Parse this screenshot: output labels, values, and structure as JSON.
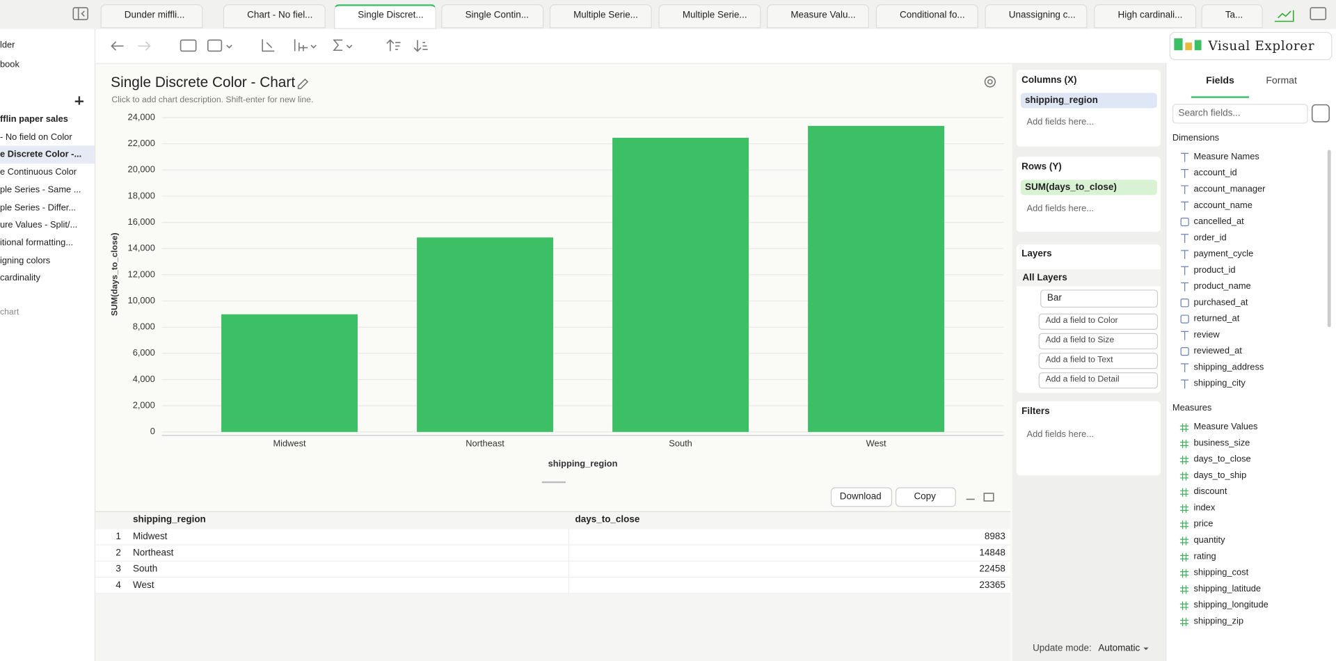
{
  "tabs": [
    "Dunder miffli...",
    "Chart - No fiel...",
    "Single Discret...",
    "Single Contin...",
    "Multiple Serie...",
    "Multiple Serie...",
    "Measure Valu...",
    "Conditional fo...",
    "Unassigning c...",
    "High cardinali...",
    "Ta..."
  ],
  "sidebar": {
    "items": [
      "lder",
      "book"
    ],
    "workbook_items": [
      "fflin paper sales",
      "- No field on Color",
      "e Discrete Color -...",
      "e Continuous Color",
      "ple Series - Same ...",
      "ple Series - Differ...",
      "ure Values - Split/...",
      "itional formatting...",
      "igning colors",
      "cardinality"
    ],
    "footer": "chart"
  },
  "app_title": "Visual Explorer",
  "chart_header": {
    "title": "Single Discrete Color - Chart",
    "description": "Click to add chart description. Shift-enter for new line."
  },
  "chart_data": {
    "type": "bar",
    "categories": [
      "Midwest",
      "Northeast",
      "South",
      "West"
    ],
    "values": [
      8983,
      14848,
      22458,
      23365
    ],
    "color": "#3dc065",
    "x_label": "shipping_region",
    "y_label": "SUM(days_to_close)",
    "ylim": [
      0,
      24000
    ],
    "yticks": [
      0,
      {
        "value": 2000,
        "label": "2,000"
      },
      {
        "value": 4000,
        "label": "4,000"
      },
      {
        "value": 6000,
        "label": "6,000"
      },
      {
        "value": 8000,
        "label": "8,000"
      },
      {
        "value": 10000,
        "label": "10,000"
      },
      {
        "value": 12000,
        "label": "12,000"
      },
      {
        "value": 14000,
        "label": "14,000"
      },
      {
        "value": 16000,
        "label": "16,000"
      },
      {
        "value": 18000,
        "label": "18,000"
      },
      {
        "value": 20000,
        "label": "20,000"
      },
      {
        "value": 22000,
        "label": "22,000"
      },
      {
        "value": 24000,
        "label": "24,000"
      }
    ],
    "grid": true
  },
  "buttons": [
    "Download",
    "Copy"
  ],
  "table": {
    "columns": [
      "shipping_region",
      "days_to_close"
    ],
    "rows": [
      [
        1,
        "Midwest",
        8983
      ],
      [
        2,
        "Northeast",
        14848
      ],
      [
        3,
        "South",
        22458
      ],
      [
        4,
        "West",
        23365
      ]
    ]
  },
  "shelves": {
    "columns": {
      "title": "Columns (X)",
      "field": "shipping_region",
      "placeholder": "Add fields here..."
    },
    "rows": {
      "title": "Rows (Y)",
      "field": "SUM(days_to_close)",
      "placeholder": "Add fields here..."
    },
    "layers": {
      "title": "Layers",
      "all": "All Layers",
      "mark": "Bar",
      "encodings": [
        "Add a field to Color",
        "Add a field to Size",
        "Add a field to Text",
        "Add a field to Detail"
      ]
    },
    "filters": {
      "title": "Filters",
      "placeholder": "Add fields here..."
    },
    "update_label": "Update mode:",
    "update_value": "Automatic"
  },
  "fields_panel": {
    "tabs": [
      "Fields",
      "Format"
    ],
    "search": "Search fields...",
    "dimensions_title": "Dimensions",
    "dimensions": [
      "Measure Names",
      "account_id",
      "account_manager",
      "account_name",
      "cancelled_at",
      "order_id",
      "payment_cycle",
      "product_id",
      "product_name",
      "purchased_at",
      "returned_at",
      "review",
      "reviewed_at",
      "shipping_address",
      "shipping_city"
    ],
    "measures_title": "Measures",
    "measures": [
      "Measure Values",
      "business_size",
      "days_to_close",
      "days_to_ship",
      "discount",
      "index",
      "price",
      "quantity",
      "rating",
      "shipping_cost",
      "shipping_latitude",
      "shipping_longitude",
      "shipping_zip"
    ]
  }
}
